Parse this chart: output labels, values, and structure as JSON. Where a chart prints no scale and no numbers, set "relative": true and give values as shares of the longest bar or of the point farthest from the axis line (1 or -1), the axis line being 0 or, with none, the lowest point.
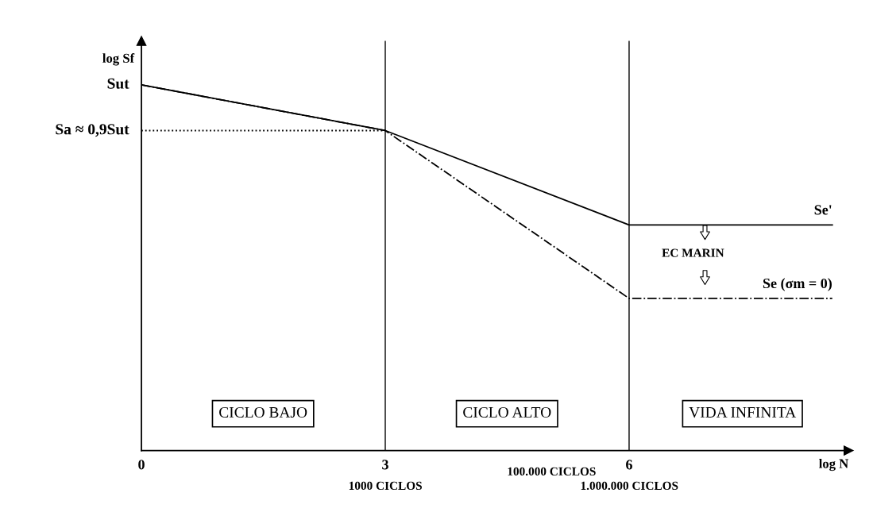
{
  "chart_data": {
    "type": "line",
    "relative": true,
    "xlabel": "log N",
    "ylabel": "log Sf",
    "xlim": [
      0,
      8.7
    ],
    "xticks": [
      0,
      3,
      6
    ],
    "grid": false,
    "legend": false,
    "marker": "none",
    "series": [
      {
        "name": "Se'",
        "color": "#000000",
        "line_style": "solid",
        "x": [
          0,
          3,
          6,
          8.5
        ],
        "values": [
          1,
          0.875,
          0.617,
          0.617
        ]
      },
      {
        "name": "Se (σm = 0)",
        "color": "#000000",
        "line_style": "dashdot",
        "x": [
          0,
          3,
          6,
          8.5
        ],
        "values": [
          1,
          0.875,
          0.416,
          0.416
        ]
      },
      {
        "color": "#000000",
        "line_style": "dotted",
        "x": [
          0,
          3
        ],
        "values": [
          0.875,
          0.875
        ]
      }
    ],
    "ref_lines": [
      {
        "axis": "x",
        "value": 3,
        "color": "#000000",
        "line_style": "solid"
      },
      {
        "axis": "x",
        "value": 6,
        "color": "#000000",
        "line_style": "solid"
      }
    ],
    "annotations": [
      {
        "text": "Sut",
        "x": 0,
        "y": 1
      },
      {
        "text": "Sa ≈ 0,9Sut",
        "x": 0,
        "y": 0.875
      },
      "CICLO BAJO",
      "CICLO ALTO",
      "VIDA INFINITA",
      "EC MARIN",
      "1000 CICLOS",
      "100.000 CICLOS",
      "1.000.000 CICLOS"
    ]
  }
}
